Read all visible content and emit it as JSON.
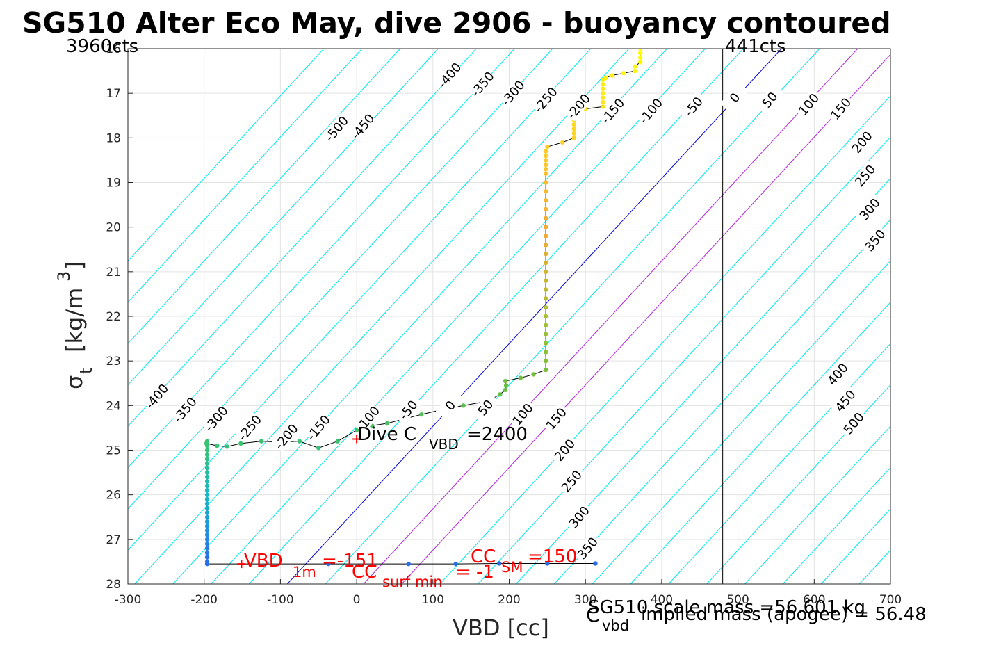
{
  "chart_data": {
    "type": "scatter",
    "title": "SG510 Alter Eco May, dive 2906 - buoyancy contoured",
    "xlabel": "VBD [cc]",
    "ylabel_main": "σ",
    "ylabel_sub": "t",
    "ylabel_unit": "[kg/m",
    "ylabel_sup": "3",
    "ylabel_end": "]",
    "xlim": [
      -300,
      700
    ],
    "ylim": [
      16,
      28
    ],
    "y_reversed": true,
    "grid": true,
    "xticks": [
      "-300",
      "-200",
      "-100",
      "0",
      "100",
      "200",
      "300",
      "400",
      "500",
      "600",
      "700"
    ],
    "yticks": [
      "16",
      "17",
      "18",
      "19",
      "20",
      "21",
      "22",
      "23",
      "24",
      "25",
      "26",
      "27",
      "28"
    ],
    "left_counts_label": "3960cts",
    "right_counts_label": "441cts",
    "vbd_limit_line_x": 480,
    "buoyancy_contours": {
      "neutral_line_points": [
        [
          -91,
          28
        ],
        [
          557,
          16
        ]
      ],
      "slope_cc_per_sigma": -54,
      "spacing_cc": 50,
      "values": [
        -600,
        -550,
        -500,
        -450,
        -400,
        -350,
        -300,
        -250,
        -200,
        -150,
        -100,
        -50,
        0,
        50,
        100,
        150,
        200,
        250,
        300,
        350,
        400,
        450,
        500,
        550,
        600,
        650,
        700,
        750,
        800
      ],
      "colors": {
        "neutral": "#0000d8",
        "highlight": "#b020e0",
        "default": "#00e8e8"
      },
      "highlight_values": [
        100,
        150
      ],
      "labels_upper": [
        {
          "text": "-500",
          "at": [
            -26,
            17.8
          ]
        },
        {
          "text": "-450",
          "at": [
            8,
            17.75
          ]
        },
        {
          "text": "-400",
          "at": [
            122,
            16.6
          ]
        },
        {
          "text": "-350",
          "at": [
            165,
            16.8
          ]
        },
        {
          "text": "-300",
          "at": [
            205,
            17
          ]
        },
        {
          "text": "-250",
          "at": [
            248,
            17.15
          ]
        },
        {
          "text": "-200",
          "at": [
            291,
            17.3
          ]
        },
        {
          "text": "-150",
          "at": [
            336,
            17.4
          ]
        },
        {
          "text": "-100",
          "at": [
            386,
            17.4
          ]
        },
        {
          "text": "-50",
          "at": [
            442,
            17.3
          ]
        },
        {
          "text": "0",
          "at": [
            496,
            17.1
          ]
        },
        {
          "text": "50",
          "at": [
            542,
            17.15
          ]
        },
        {
          "text": "100",
          "at": [
            593,
            17.25
          ]
        },
        {
          "text": "150",
          "at": [
            635,
            17.35
          ]
        },
        {
          "text": "200",
          "at": [
            663,
            18.1
          ]
        },
        {
          "text": "250",
          "at": [
            667,
            18.85
          ]
        },
        {
          "text": "300",
          "at": [
            673,
            19.6
          ]
        },
        {
          "text": "350",
          "at": [
            680,
            20.3
          ]
        },
        {
          "text": "400",
          "at": [
            631,
            23.3
          ]
        },
        {
          "text": "450",
          "at": [
            641,
            23.9
          ]
        },
        {
          "text": "500",
          "at": [
            652,
            24.4
          ]
        }
      ],
      "labels_lower": [
        {
          "text": "-400",
          "at": [
            -262,
            23.8
          ]
        },
        {
          "text": "-350",
          "at": [
            -225,
            24.1
          ]
        },
        {
          "text": "-300",
          "at": [
            -184,
            24.3
          ]
        },
        {
          "text": "-250",
          "at": [
            -140,
            24.5
          ]
        },
        {
          "text": "-200",
          "at": [
            -92,
            24.7
          ]
        },
        {
          "text": "-150",
          "at": [
            -50,
            24.5
          ]
        },
        {
          "text": "-100",
          "at": [
            15,
            24.3
          ]
        },
        {
          "text": "-50",
          "at": [
            68,
            24.1
          ]
        },
        {
          "text": "0",
          "at": [
            123,
            24
          ]
        },
        {
          "text": "50",
          "at": [
            169,
            24.05
          ]
        },
        {
          "text": "100",
          "at": [
            218,
            24.2
          ]
        },
        {
          "text": "150",
          "at": [
            262,
            24.3
          ]
        },
        {
          "text": "200",
          "at": [
            273,
            25
          ]
        },
        {
          "text": "250",
          "at": [
            282,
            25.7
          ]
        },
        {
          "text": "300",
          "at": [
            292,
            26.5
          ]
        },
        {
          "text": "350",
          "at": [
            303,
            27.2
          ]
        }
      ]
    },
    "profile": [
      [
        372,
        16
      ],
      [
        372,
        16.1
      ],
      [
        372,
        16.2
      ],
      [
        372,
        16.3
      ],
      [
        365,
        16.4
      ],
      [
        365,
        16.5
      ],
      [
        350,
        16.55
      ],
      [
        335,
        16.6
      ],
      [
        327,
        16.65
      ],
      [
        323,
        16.7
      ],
      [
        323,
        16.8
      ],
      [
        323,
        16.9
      ],
      [
        323,
        17
      ],
      [
        323,
        17.1
      ],
      [
        323,
        17.2
      ],
      [
        323,
        17.3
      ],
      [
        300,
        17.35
      ],
      [
        290,
        17.4
      ],
      [
        285,
        17.5
      ],
      [
        285,
        17.6
      ],
      [
        285,
        17.7
      ],
      [
        285,
        17.8
      ],
      [
        285,
        17.9
      ],
      [
        285,
        18
      ],
      [
        270,
        18.1
      ],
      [
        250,
        18.2
      ],
      [
        248,
        18.3
      ],
      [
        248,
        18.4
      ],
      [
        248,
        18.5
      ],
      [
        248,
        18.6
      ],
      [
        248,
        18.7
      ],
      [
        248,
        18.8
      ],
      [
        248,
        19
      ],
      [
        248,
        19.2
      ],
      [
        248,
        19.4
      ],
      [
        248,
        19.6
      ],
      [
        248,
        19.8
      ],
      [
        248,
        20
      ],
      [
        248,
        20.2
      ],
      [
        248,
        20.4
      ],
      [
        248,
        20.6
      ],
      [
        248,
        20.8
      ],
      [
        248,
        21
      ],
      [
        248,
        21.2
      ],
      [
        248,
        21.4
      ],
      [
        248,
        21.6
      ],
      [
        248,
        21.8
      ],
      [
        248,
        22
      ],
      [
        248,
        22.2
      ],
      [
        248,
        22.4
      ],
      [
        248,
        22.6
      ],
      [
        248,
        22.8
      ],
      [
        248,
        23
      ],
      [
        248,
        23.2
      ],
      [
        232,
        23.3
      ],
      [
        215,
        23.38
      ],
      [
        195,
        23.45
      ],
      [
        196,
        23.55
      ],
      [
        195,
        23.65
      ],
      [
        188,
        23.75
      ],
      [
        172,
        23.9
      ],
      [
        140,
        24
      ],
      [
        110,
        24.1
      ],
      [
        85,
        24.2
      ],
      [
        62,
        24.3
      ],
      [
        40,
        24.4
      ],
      [
        20,
        24.45
      ],
      [
        0,
        24.55
      ],
      [
        -25,
        24.8
      ],
      [
        -50,
        24.95
      ],
      [
        -75,
        24.8
      ],
      [
        -100,
        24.82
      ],
      [
        -125,
        24.8
      ],
      [
        -152,
        24.85
      ],
      [
        -170,
        24.92
      ],
      [
        -183,
        24.9
      ],
      [
        -197,
        24.85
      ],
      [
        -196,
        24.8
      ],
      [
        -196,
        24.9
      ],
      [
        -196,
        25
      ],
      [
        -196,
        25.1
      ],
      [
        -196,
        25.2
      ],
      [
        -196,
        25.3
      ],
      [
        -196,
        25.4
      ],
      [
        -196,
        25.5
      ],
      [
        -196,
        25.6
      ],
      [
        -196,
        25.7
      ],
      [
        -196,
        25.8
      ],
      [
        -196,
        25.9
      ],
      [
        -196,
        26
      ],
      [
        -196,
        26.1
      ],
      [
        -196,
        26.2
      ],
      [
        -196,
        26.3
      ],
      [
        -196,
        26.4
      ],
      [
        -196,
        26.5
      ],
      [
        -196,
        26.6
      ],
      [
        -196,
        26.7
      ],
      [
        -196,
        26.8
      ],
      [
        -196,
        26.9
      ],
      [
        -196,
        27
      ],
      [
        -196,
        27.1
      ],
      [
        -196,
        27.2
      ],
      [
        -196,
        27.3
      ],
      [
        -196,
        27.4
      ],
      [
        -196,
        27.5
      ],
      [
        -196,
        27.55
      ],
      [
        -37,
        27.55
      ],
      [
        68,
        27.55
      ],
      [
        130,
        27.55
      ],
      [
        187,
        27.54
      ],
      [
        250,
        27.54
      ],
      [
        313,
        27.54
      ]
    ],
    "dive_cvbd_marker": [
      0,
      24.75
    ],
    "vbd_1m_marker": [
      -151,
      27.55
    ],
    "dive_cvbd_text": "Dive C",
    "dive_cvbd_sub": "VBD",
    "dive_cvbd_value": "=2400",
    "vbd_1m_text": "VBD",
    "vbd_1m_sub": "1m",
    "vbd_1m_value": "=-151",
    "cc_surf_text": "CC",
    "cc_surf_sub": "surf min",
    "cc_surf_value": "= -1",
    "cc_sm_text": "CC",
    "cc_sm_sub": "SM",
    "cc_sm_value": "=150",
    "cvbd_text": "C",
    "cvbd_sub": "vbd",
    "scale_mass_text": "SG510 scale mass =56.601 kg",
    "implied_mass_text": "implied mass (apogee) = 56.48"
  }
}
